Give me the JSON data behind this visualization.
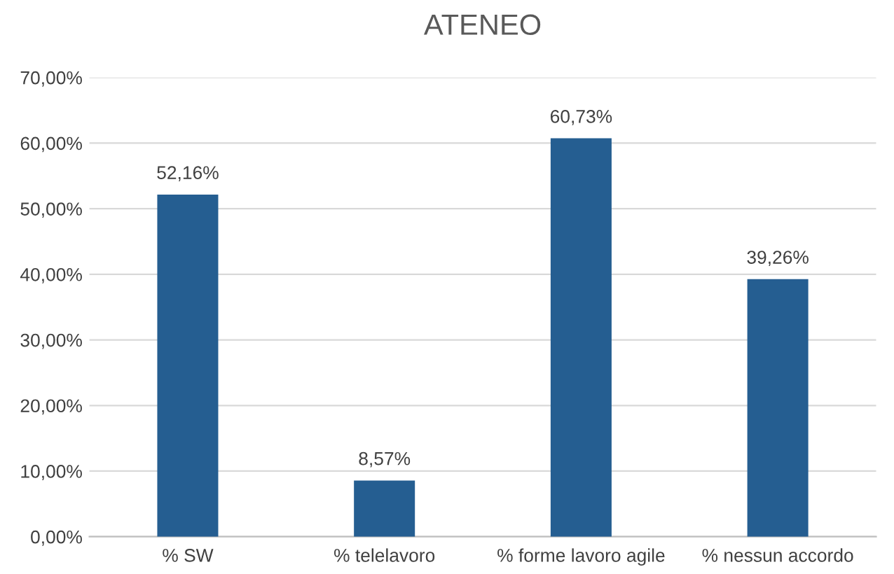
{
  "chart_data": {
    "type": "bar",
    "title": "ATENEO",
    "categories": [
      "% SW",
      "% telelavoro",
      "% forme lavoro agile",
      "% nessun accordo"
    ],
    "values": [
      52.16,
      8.57,
      60.73,
      39.26
    ],
    "value_labels": [
      "52,16%",
      "8,57%",
      "60,73%",
      "39,26%"
    ],
    "color": "#255e91",
    "ylim": [
      0,
      70
    ],
    "yticks": [
      {
        "value": 0,
        "label": "0,00%"
      },
      {
        "value": 10,
        "label": "10,00%"
      },
      {
        "value": 20,
        "label": "20,00%"
      },
      {
        "value": 30,
        "label": "30,00%"
      },
      {
        "value": 40,
        "label": "40,00%"
      },
      {
        "value": 50,
        "label": "50,00%"
      },
      {
        "value": 60,
        "label": "60,00%"
      },
      {
        "value": 70,
        "label": "70,00%"
      }
    ],
    "grid": "y"
  }
}
